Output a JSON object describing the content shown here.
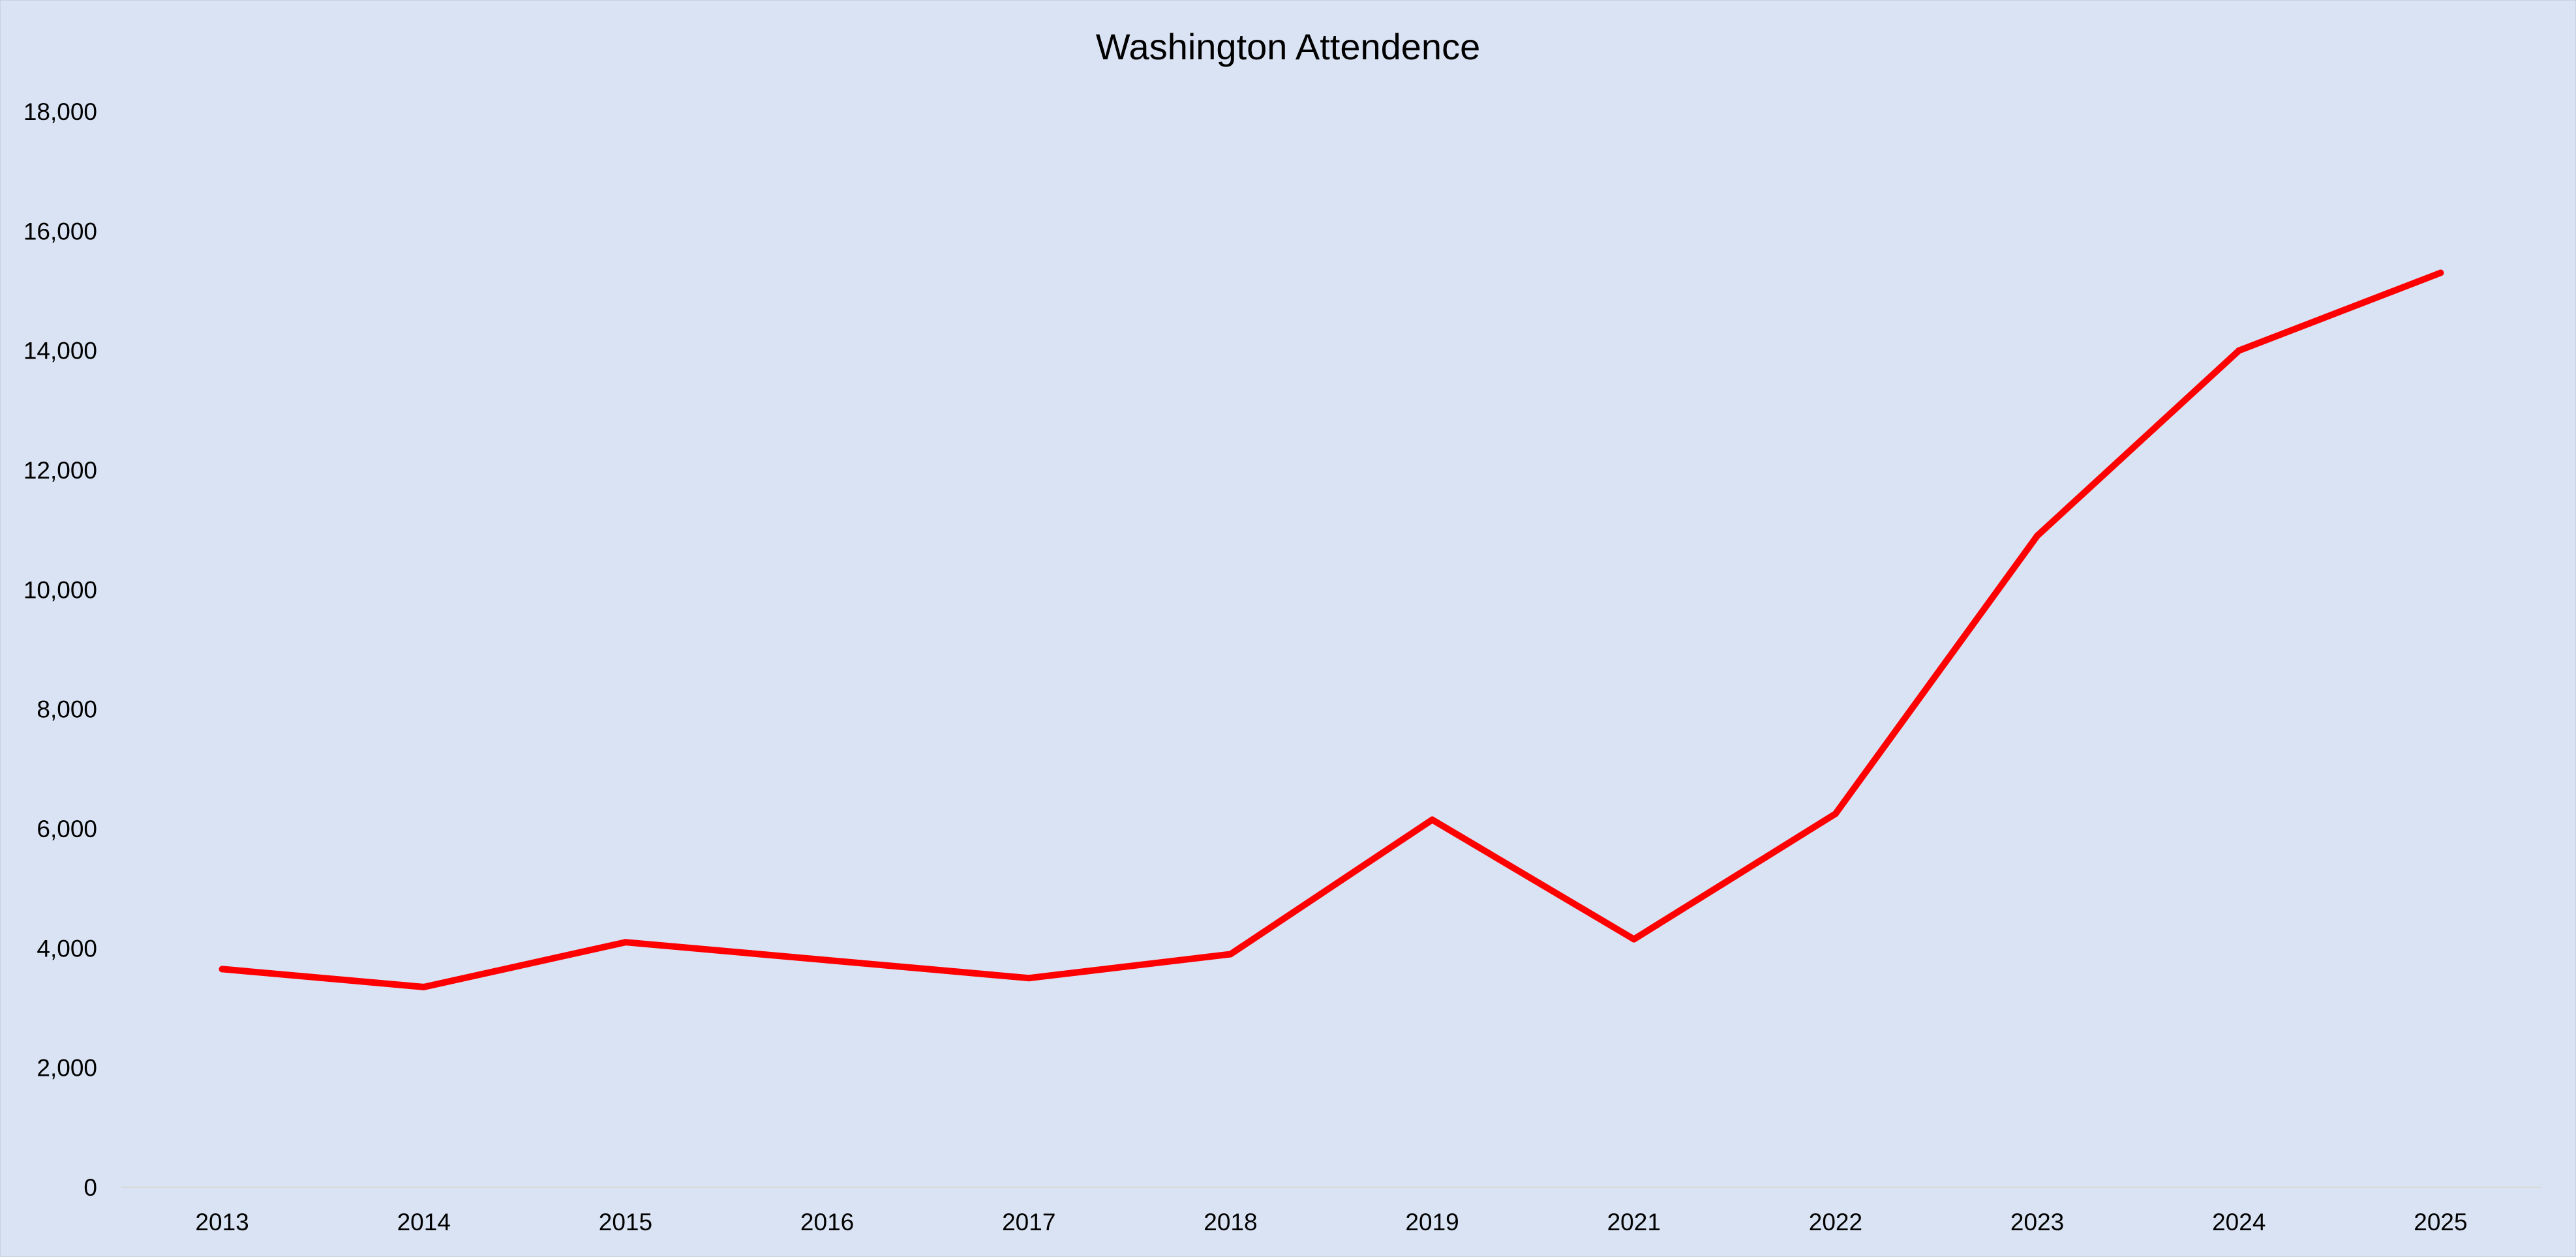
{
  "chart_data": {
    "type": "line",
    "title": "Washington Attendence",
    "xlabel": "",
    "ylabel": "",
    "categories": [
      "2013",
      "2014",
      "2015",
      "2016",
      "2017",
      "2018",
      "2019",
      "2021",
      "2022",
      "2023",
      "2024",
      "2025"
    ],
    "series": [
      {
        "name": "Washington Attendence",
        "values": [
          3650,
          3350,
          4100,
          3800,
          3500,
          3900,
          6150,
          4150,
          6250,
          10900,
          14000,
          15300
        ],
        "color": "#ff0000"
      }
    ],
    "ylim": [
      0,
      18000
    ],
    "yticks": [
      0,
      2000,
      4000,
      6000,
      8000,
      10000,
      12000,
      14000,
      16000,
      18000
    ],
    "ytick_labels": [
      "0",
      "2,000",
      "4,000",
      "6,000",
      "8,000",
      "10,000",
      "12,000",
      "14,000",
      "16,000",
      "18,000"
    ],
    "grid": false,
    "legend": "none",
    "background": "#dae3f3",
    "axis_color": "#d9d9d9"
  }
}
